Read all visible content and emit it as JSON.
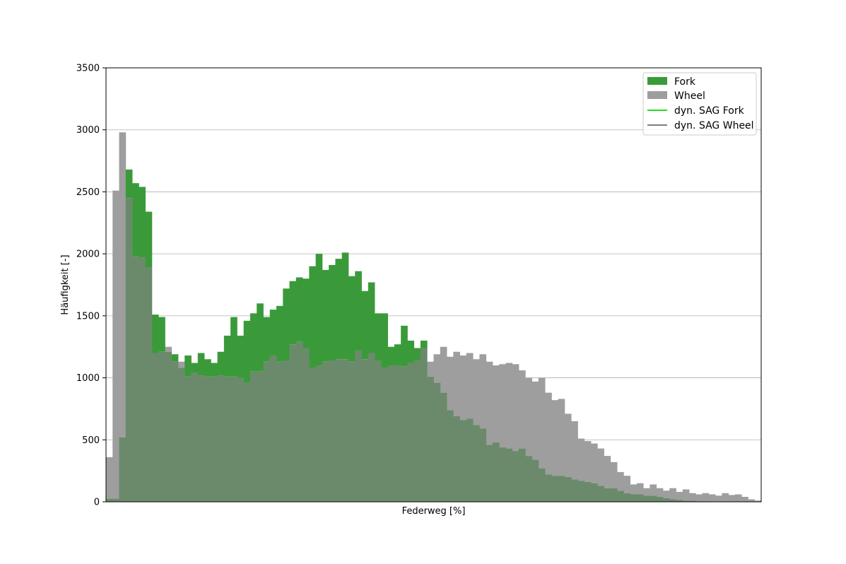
{
  "chart_data": {
    "type": "bar",
    "subtype": "overlapping-histogram",
    "xlabel": "Federweg [%]",
    "ylabel": "Häufigkeit [-]",
    "ylim": [
      0,
      3500
    ],
    "yticks": [
      0,
      500,
      1000,
      1500,
      2000,
      2500,
      3000,
      3500
    ],
    "xticks": [],
    "grid": "y",
    "legend_placement": "top-right",
    "bin_count": 100,
    "series": [
      {
        "name": "Fork",
        "color": "#3a9a3a",
        "opacity": 0.95,
        "values": [
          25,
          25,
          520,
          2680,
          2570,
          2540,
          2340,
          1510,
          1490,
          1210,
          1190,
          1080,
          1180,
          1120,
          1200,
          1150,
          1120,
          1210,
          1340,
          1490,
          1340,
          1460,
          1520,
          1600,
          1490,
          1550,
          1580,
          1720,
          1780,
          1810,
          1800,
          1900,
          2000,
          1870,
          1910,
          1960,
          2010,
          1820,
          1860,
          1700,
          1770,
          1520,
          1520,
          1250,
          1270,
          1420,
          1300,
          1240,
          1300,
          1010,
          960,
          880,
          740,
          690,
          660,
          670,
          620,
          590,
          460,
          480,
          440,
          430,
          410,
          430,
          370,
          340,
          270,
          220,
          210,
          210,
          200,
          180,
          170,
          160,
          150,
          130,
          110,
          110,
          90,
          70,
          60,
          60,
          50,
          50,
          40,
          30,
          20,
          15,
          10,
          8,
          5,
          5,
          4,
          3,
          2,
          2,
          1,
          1,
          0,
          0
        ]
      },
      {
        "name": "Wheel",
        "color": "#9e9e9e",
        "opacity": 0.95,
        "values": [
          360,
          2510,
          2980,
          2450,
          1980,
          1970,
          1890,
          1200,
          1210,
          1250,
          1130,
          1130,
          1010,
          1040,
          1020,
          1010,
          1010,
          1020,
          1010,
          1010,
          1000,
          960,
          1050,
          1050,
          1130,
          1180,
          1130,
          1140,
          1270,
          1290,
          1240,
          1080,
          1100,
          1130,
          1140,
          1150,
          1150,
          1130,
          1220,
          1150,
          1200,
          1140,
          1080,
          1100,
          1100,
          1090,
          1120,
          1140,
          1240,
          1130,
          1190,
          1250,
          1170,
          1210,
          1180,
          1200,
          1150,
          1190,
          1130,
          1100,
          1110,
          1120,
          1110,
          1060,
          1000,
          970,
          1000,
          880,
          820,
          830,
          710,
          650,
          510,
          490,
          470,
          430,
          370,
          320,
          240,
          210,
          140,
          150,
          110,
          140,
          110,
          90,
          110,
          80,
          100,
          70,
          60,
          70,
          60,
          50,
          70,
          55,
          60,
          40,
          20,
          10
        ]
      }
    ],
    "line_series": [
      {
        "name": "dyn. SAG Fork",
        "color": "#22dd22"
      },
      {
        "name": "dyn. SAG Wheel",
        "color": "#555555"
      }
    ]
  }
}
